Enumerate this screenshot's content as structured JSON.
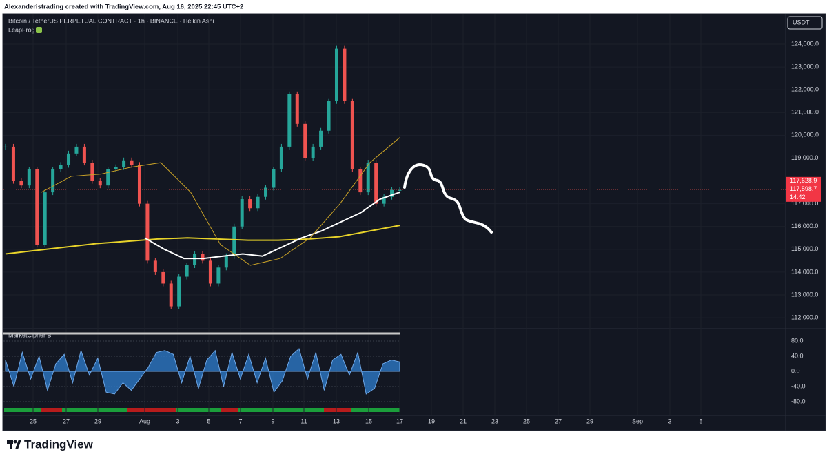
{
  "header": {
    "attribution": "Alexanderistrading created with TradingView.com, Aug 16, 2025 22:45 UTC+2"
  },
  "footer": {
    "brand": "TradingView"
  },
  "chart_data": [
    {
      "type": "candlestick",
      "title": "Bitcoin / TetherUS PERPETUAL CONTRACT · 1h · BINANCE · Heikin Ashi",
      "subtitle": "LeapFrog",
      "currency": "USDT",
      "ylim": [
        111580,
        125330
      ],
      "yticks": [
        {
          "value": 112000,
          "label": "112,000.0"
        },
        {
          "value": 113000,
          "label": "113,000.0"
        },
        {
          "value": 114000,
          "label": "114,000.0"
        },
        {
          "value": 115000,
          "label": "115,000.0"
        },
        {
          "value": 116000,
          "label": "116,000.0"
        },
        {
          "value": 117000,
          "label": "117,000.0"
        },
        {
          "value": 118000,
          "label": "118,000.0"
        },
        {
          "value": 119000,
          "label": "119,000.0"
        },
        {
          "value": 120000,
          "label": "120,000.0"
        },
        {
          "value": 121000,
          "label": "121,000.0"
        },
        {
          "value": 122000,
          "label": "122,000.0"
        },
        {
          "value": 123000,
          "label": "123,000.0"
        },
        {
          "value": 124000,
          "label": "124,000.0"
        }
      ],
      "time_labels": [
        "25",
        "27",
        "29",
        "Aug",
        "3",
        "5",
        "7",
        "9",
        "11",
        "13",
        "15",
        "17",
        "19",
        "21",
        "23",
        "25",
        "27",
        "29",
        "Sep",
        "3",
        "5"
      ],
      "values": [
        119500,
        118000,
        117800,
        118500,
        115200,
        117500,
        118500,
        118700,
        119200,
        119500,
        118800,
        118000,
        117800,
        118500,
        118600,
        118900,
        118700,
        117000,
        114500,
        114000,
        113500,
        112500,
        113800,
        114300,
        114800,
        114500,
        113500,
        114200,
        114700,
        116000,
        117200,
        116800,
        117300,
        117700,
        118500,
        119500,
        121800,
        120500,
        119000,
        119500,
        120200,
        121500,
        123800,
        121500,
        118500,
        117500,
        118800,
        117000,
        117300,
        117600,
        117600
      ],
      "up_color": "#26a69a",
      "down_color": "#ef5350",
      "series": [
        {
          "color": "#e8d32a",
          "width": 2,
          "values": [
            114800,
            114950,
            115100,
            115250,
            115350,
            115450,
            115500,
            115450,
            115400,
            115400,
            115450,
            115550,
            115800,
            116050
          ]
        },
        {
          "color": "#ffffff",
          "width": 2,
          "values": [
            115500,
            115000,
            114600,
            114600,
            114700,
            114800,
            114700,
            115100,
            115500,
            115800,
            116200,
            116600,
            117200,
            117500
          ]
        },
        {
          "color": "#c9a227",
          "width": 1,
          "values": [
            117500,
            118200,
            118300,
            118600,
            118800,
            117500,
            115200,
            114300,
            114600,
            115500,
            117000,
            118800,
            119900
          ]
        }
      ],
      "last_price": [
        {
          "value": 117628.9,
          "label": "117,628.9"
        },
        {
          "value": 117598.7,
          "label": "117,598.7"
        }
      ],
      "countdown": "14:42"
    },
    {
      "type": "area",
      "title": "MarketCipher B",
      "ylim": [
        -111,
        111
      ],
      "yticks": [
        {
          "value": 80,
          "label": "80.0"
        },
        {
          "value": 40,
          "label": "40.0"
        },
        {
          "value": 0,
          "label": "0.0"
        },
        {
          "value": -40,
          "label": "-40.0"
        },
        {
          "value": -80,
          "label": "-80.0"
        }
      ],
      "color": "#2f7fd0",
      "values": [
        30,
        -40,
        50,
        -20,
        40,
        -50,
        20,
        45,
        -30,
        55,
        -10,
        35,
        -55,
        -60,
        -30,
        -50,
        -20,
        10,
        50,
        55,
        45,
        -30,
        40,
        -45,
        30,
        55,
        -40,
        50,
        -20,
        45,
        -30,
        35,
        -55,
        -25,
        40,
        60,
        -20,
        50,
        -50,
        30,
        45,
        -10,
        50,
        -60,
        -45,
        20,
        30,
        25
      ]
    }
  ]
}
